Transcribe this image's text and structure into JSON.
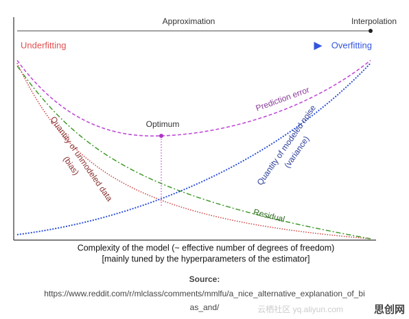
{
  "top_axis": {
    "left": "Approximation",
    "right": "Interpolation"
  },
  "fit_arrow": {
    "left": "Underfitting",
    "right": "Overfitting"
  },
  "curve_labels": {
    "prediction_error": "Prediction error",
    "optimum": "Optimum",
    "variance": [
      "Quantity of modeled noise",
      "(variance)"
    ],
    "bias": [
      "Quantity of unmodeled data",
      "(bias)"
    ],
    "residual": "Residual"
  },
  "x_axis": [
    "Complexity of the model (~ effective number of degrees of freedom)",
    "[mainly tuned by the hyperparameters of the estimator]"
  ],
  "source": {
    "heading": "Source:",
    "lines": [
      "https://www.reddit.com/r/mlclass/comments/mmlfu/a_nice_alternative_explanation_of_bi",
      "as_and/"
    ]
  },
  "watermark": {
    "faded": "云栖社区 yq.aliyun.com",
    "brand": "思创网"
  }
}
